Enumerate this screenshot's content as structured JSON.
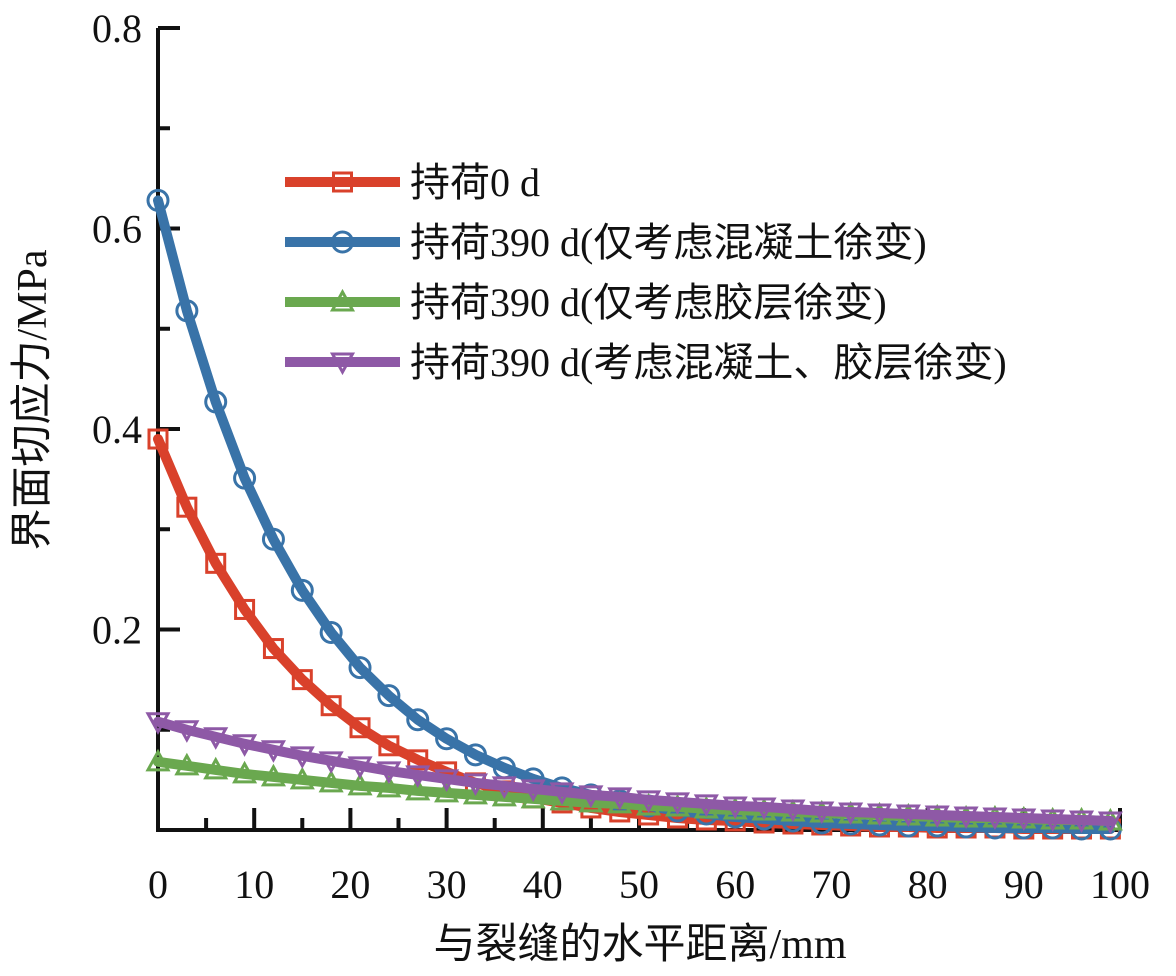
{
  "chart_data": {
    "type": "line",
    "xlabel": "与裂缝的水平距离/mm",
    "ylabel": "界面切应力/MPa",
    "xlim": [
      0,
      100
    ],
    "ylim": [
      0,
      0.8
    ],
    "x_ticks": [
      0,
      10,
      20,
      30,
      40,
      50,
      60,
      70,
      80,
      90,
      100
    ],
    "y_ticks": [
      0.2,
      0.4,
      0.6,
      0.8
    ],
    "x_tick_labels": [
      "0",
      "10",
      "20",
      "30",
      "40",
      "50",
      "60",
      "70",
      "80",
      "90",
      "100"
    ],
    "y_tick_labels": [
      "0.2",
      "0.4",
      "0.6",
      "0.8"
    ],
    "grid": false,
    "legend_position": "upper-right",
    "series": [
      {
        "name": "持荷0 d",
        "color": "#d9412b",
        "marker": "square",
        "x": [
          0,
          3,
          6,
          9,
          12,
          15,
          18,
          21,
          24,
          27,
          30,
          33,
          36,
          39,
          42,
          45,
          48,
          51,
          54,
          57,
          60,
          63,
          66,
          69,
          72,
          75,
          78,
          81,
          84,
          87,
          90,
          93,
          96,
          99
        ],
        "y": [
          0.39,
          0.322,
          0.266,
          0.22,
          0.181,
          0.15,
          0.124,
          0.102,
          0.084,
          0.07,
          0.058,
          0.047,
          0.039,
          0.032,
          0.027,
          0.022,
          0.018,
          0.015,
          0.012,
          0.01,
          0.009,
          0.007,
          0.006,
          0.005,
          0.004,
          0.003,
          0.003,
          0.002,
          0.002,
          0.002,
          0.001,
          0.001,
          0.001,
          0.001
        ]
      },
      {
        "name": "持荷390 d(仅考虑混凝土徐变)",
        "color": "#3973a8",
        "marker": "circle",
        "x": [
          0,
          3,
          6,
          9,
          12,
          15,
          18,
          21,
          24,
          27,
          30,
          33,
          36,
          39,
          42,
          45,
          48,
          51,
          54,
          57,
          60,
          63,
          66,
          69,
          72,
          75,
          78,
          81,
          84,
          87,
          90,
          93,
          96,
          99
        ],
        "y": [
          0.628,
          0.518,
          0.427,
          0.351,
          0.29,
          0.239,
          0.197,
          0.162,
          0.134,
          0.11,
          0.091,
          0.075,
          0.062,
          0.051,
          0.042,
          0.035,
          0.029,
          0.024,
          0.019,
          0.016,
          0.013,
          0.011,
          0.009,
          0.007,
          0.006,
          0.005,
          0.004,
          0.004,
          0.003,
          0.002,
          0.002,
          0.002,
          0.001,
          0.001
        ]
      },
      {
        "name": "持荷390 d(仅考虑胶层徐变)",
        "color": "#6aa84f",
        "marker": "triangle-up",
        "x": [
          0,
          3,
          6,
          9,
          12,
          15,
          18,
          21,
          24,
          27,
          30,
          33,
          36,
          39,
          42,
          45,
          48,
          51,
          54,
          57,
          60,
          63,
          66,
          69,
          72,
          75,
          78,
          81,
          84,
          87,
          90,
          93,
          96,
          99
        ],
        "y": [
          0.068,
          0.064,
          0.06,
          0.056,
          0.053,
          0.05,
          0.047,
          0.044,
          0.042,
          0.039,
          0.037,
          0.035,
          0.033,
          0.031,
          0.029,
          0.027,
          0.026,
          0.024,
          0.023,
          0.021,
          0.02,
          0.019,
          0.018,
          0.017,
          0.016,
          0.015,
          0.014,
          0.013,
          0.012,
          0.012,
          0.011,
          0.01,
          0.01,
          0.009
        ]
      },
      {
        "name": "持荷390 d(考虑混凝土、胶层徐变)",
        "color": "#8e59a6",
        "marker": "triangle-down",
        "x": [
          0,
          3,
          6,
          9,
          12,
          15,
          18,
          21,
          24,
          27,
          30,
          33,
          36,
          39,
          42,
          45,
          48,
          51,
          54,
          57,
          60,
          63,
          66,
          69,
          72,
          75,
          78,
          81,
          84,
          87,
          90,
          93,
          96,
          99
        ],
        "y": [
          0.108,
          0.1,
          0.093,
          0.086,
          0.08,
          0.074,
          0.069,
          0.064,
          0.059,
          0.055,
          0.051,
          0.047,
          0.044,
          0.041,
          0.038,
          0.035,
          0.033,
          0.03,
          0.028,
          0.026,
          0.024,
          0.023,
          0.021,
          0.019,
          0.018,
          0.017,
          0.016,
          0.015,
          0.014,
          0.013,
          0.012,
          0.011,
          0.01,
          0.009
        ]
      }
    ]
  }
}
